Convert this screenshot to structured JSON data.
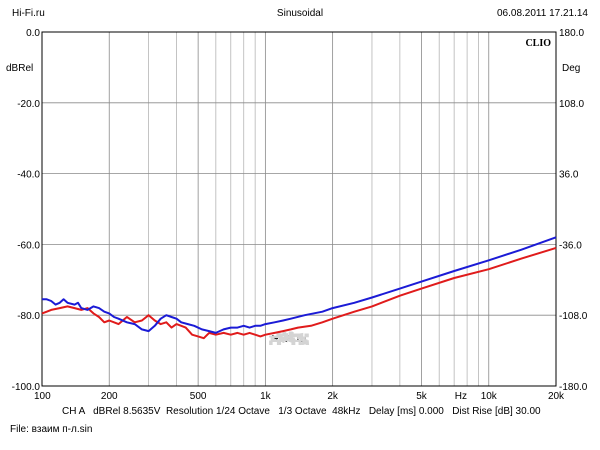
{
  "header": {
    "left": "Hi-Fi.ru",
    "center": "Sinusoidal",
    "right": "06.08.2011 17.21.14"
  },
  "brand": "CLIO",
  "footer": {
    "line1": "CH A   dBRel 8.5635V  Resolution 1/24 Octave   1/3 Octave  48kHz   Delay [ms] 0.000   Dist Rise [dB] 30.00",
    "line2": "File: взаим п-л.sin"
  },
  "watermark": "Hi-Fi.ru",
  "chart_data": {
    "type": "line",
    "xscale": "log",
    "xlim": [
      100,
      20000
    ],
    "ylim": [
      -100,
      0
    ],
    "y2lim": [
      -180,
      180
    ],
    "ylabel": "dBRel",
    "y2label": "Deg",
    "grid": true,
    "y_ticks": [
      {
        "v": 0,
        "label": "0.0"
      },
      {
        "v": -20,
        "label": "-20.0"
      },
      {
        "v": -40,
        "label": "-40.0"
      },
      {
        "v": -60,
        "label": "-60.0"
      },
      {
        "v": -80,
        "label": "-80.0"
      },
      {
        "v": -100,
        "label": "-100.0"
      }
    ],
    "y2_ticks": [
      {
        "v": 180,
        "label": "180.0"
      },
      {
        "v": 108,
        "label": "108.0"
      },
      {
        "v": 36,
        "label": "36.0"
      },
      {
        "v": -36,
        "label": "-36.0"
      },
      {
        "v": -108,
        "label": "-108.0"
      },
      {
        "v": -180,
        "label": "-180.0"
      }
    ],
    "x_ticks": [
      {
        "v": 100,
        "label": "100"
      },
      {
        "v": 200,
        "label": "200"
      },
      {
        "v": 500,
        "label": "500"
      },
      {
        "v": 1000,
        "label": "1k"
      },
      {
        "v": 2000,
        "label": "2k"
      },
      {
        "v": 5000,
        "label": "5k"
      },
      {
        "v": 7500,
        "label": "Hz"
      },
      {
        "v": 10000,
        "label": "10k"
      },
      {
        "v": 20000,
        "label": "20k"
      }
    ],
    "series": [
      {
        "color": "#e01b1b",
        "points": [
          [
            100,
            -79.5
          ],
          [
            105,
            -79
          ],
          [
            110,
            -78.5
          ],
          [
            120,
            -78
          ],
          [
            130,
            -77.5
          ],
          [
            140,
            -78
          ],
          [
            150,
            -78.5
          ],
          [
            160,
            -78
          ],
          [
            170,
            -79.5
          ],
          [
            180,
            -80.5
          ],
          [
            190,
            -82
          ],
          [
            200,
            -81.5
          ],
          [
            210,
            -82
          ],
          [
            220,
            -82.5
          ],
          [
            240,
            -80.5
          ],
          [
            260,
            -82
          ],
          [
            280,
            -81.5
          ],
          [
            300,
            -80
          ],
          [
            320,
            -81.5
          ],
          [
            340,
            -82.5
          ],
          [
            360,
            -82
          ],
          [
            380,
            -83.5
          ],
          [
            400,
            -82.5
          ],
          [
            420,
            -83
          ],
          [
            440,
            -83.5
          ],
          [
            470,
            -85.5
          ],
          [
            500,
            -86
          ],
          [
            530,
            -86.5
          ],
          [
            560,
            -85
          ],
          [
            600,
            -85.5
          ],
          [
            650,
            -85
          ],
          [
            700,
            -85.5
          ],
          [
            750,
            -85
          ],
          [
            800,
            -85.5
          ],
          [
            850,
            -85
          ],
          [
            900,
            -85.5
          ],
          [
            950,
            -86
          ],
          [
            1000,
            -85.5
          ],
          [
            1100,
            -85
          ],
          [
            1200,
            -84.5
          ],
          [
            1300,
            -84
          ],
          [
            1400,
            -83.5
          ],
          [
            1600,
            -83
          ],
          [
            1800,
            -82
          ],
          [
            2000,
            -81
          ],
          [
            2500,
            -79
          ],
          [
            3000,
            -77.5
          ],
          [
            4000,
            -74.5
          ],
          [
            5000,
            -72.5
          ],
          [
            7000,
            -69.5
          ],
          [
            10000,
            -67
          ],
          [
            14000,
            -64
          ],
          [
            20000,
            -61
          ]
        ]
      },
      {
        "color": "#1b1bd6",
        "points": [
          [
            100,
            -75.5
          ],
          [
            105,
            -75.5
          ],
          [
            110,
            -76
          ],
          [
            115,
            -77
          ],
          [
            120,
            -76.5
          ],
          [
            125,
            -75.5
          ],
          [
            130,
            -76.5
          ],
          [
            140,
            -77
          ],
          [
            145,
            -76.5
          ],
          [
            150,
            -78
          ],
          [
            160,
            -78.5
          ],
          [
            170,
            -77.5
          ],
          [
            180,
            -78
          ],
          [
            190,
            -79
          ],
          [
            200,
            -79.5
          ],
          [
            210,
            -80.5
          ],
          [
            220,
            -81
          ],
          [
            240,
            -82
          ],
          [
            260,
            -82.5
          ],
          [
            280,
            -84
          ],
          [
            300,
            -84.5
          ],
          [
            320,
            -83
          ],
          [
            340,
            -81
          ],
          [
            360,
            -80
          ],
          [
            380,
            -80.5
          ],
          [
            400,
            -81
          ],
          [
            420,
            -82
          ],
          [
            450,
            -82.5
          ],
          [
            480,
            -83
          ],
          [
            520,
            -84
          ],
          [
            560,
            -84.5
          ],
          [
            600,
            -85
          ],
          [
            650,
            -84
          ],
          [
            700,
            -83.5
          ],
          [
            750,
            -83.5
          ],
          [
            800,
            -83
          ],
          [
            850,
            -83.5
          ],
          [
            900,
            -83
          ],
          [
            950,
            -83
          ],
          [
            1000,
            -82.5
          ],
          [
            1100,
            -82
          ],
          [
            1200,
            -81.5
          ],
          [
            1300,
            -81
          ],
          [
            1500,
            -80
          ],
          [
            1800,
            -79
          ],
          [
            2000,
            -78
          ],
          [
            2500,
            -76.5
          ],
          [
            3000,
            -75
          ],
          [
            4000,
            -72.5
          ],
          [
            5000,
            -70.5
          ],
          [
            7000,
            -67.5
          ],
          [
            10000,
            -64.5
          ],
          [
            14000,
            -61.5
          ],
          [
            20000,
            -58
          ]
        ]
      }
    ]
  }
}
